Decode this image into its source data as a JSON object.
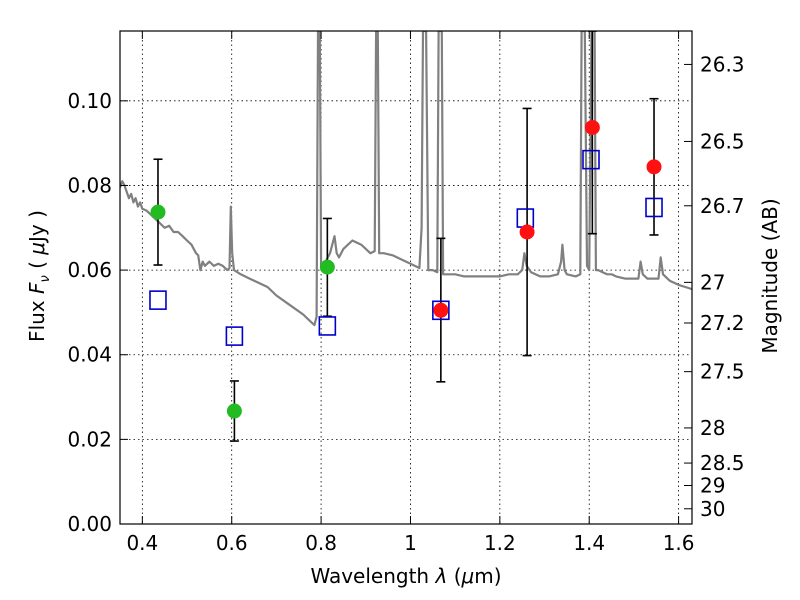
{
  "chart_data": {
    "type": "scatter",
    "xlabel": "Wavelength",
    "xlabel_symbol": "λ",
    "xlabel_unit_prefix": "(",
    "xlabel_unit_mu": "μ",
    "xlabel_unit_suffix": "m)",
    "ylabel": "Flux",
    "ylabel_symbol": "F",
    "ylabel_sub": "ν",
    "ylabel_unit_open": "(",
    "ylabel_unit_mu": "μ",
    "ylabel_unit_text": "Jy",
    "ylabel_unit_close": ")",
    "y2label": "Magnitude (AB)",
    "xlim": [
      0.35,
      1.63
    ],
    "ylim": [
      0.0,
      0.1165
    ],
    "grid": true,
    "grid_style": "dotted",
    "xticks": [
      {
        "value": 0.4,
        "label": "0.4"
      },
      {
        "value": 0.6,
        "label": "0.6"
      },
      {
        "value": 0.8,
        "label": "0.8"
      },
      {
        "value": 1.0,
        "label": "1"
      },
      {
        "value": 1.2,
        "label": "1.2"
      },
      {
        "value": 1.4,
        "label": "1.4"
      },
      {
        "value": 1.6,
        "label": "1.6"
      }
    ],
    "yticks": [
      {
        "value": 0.0,
        "label": "0.00"
      },
      {
        "value": 0.02,
        "label": "0.02"
      },
      {
        "value": 0.04,
        "label": "0.04"
      },
      {
        "value": 0.06,
        "label": "0.06"
      },
      {
        "value": 0.08,
        "label": "0.08"
      },
      {
        "value": 0.1,
        "label": "0.10"
      }
    ],
    "y2ticks": [
      {
        "label": "26.3",
        "flux": 0.1086
      },
      {
        "label": "26.5",
        "flux": 0.0904
      },
      {
        "label": "26.7",
        "flux": 0.0752
      },
      {
        "label": "27",
        "flux": 0.0571
      },
      {
        "label": "27.2",
        "flux": 0.0475
      },
      {
        "label": "27.5",
        "flux": 0.036
      },
      {
        "label": "28",
        "flux": 0.0227
      },
      {
        "label": "28.5",
        "flux": 0.0144
      },
      {
        "label": "29",
        "flux": 0.0091
      },
      {
        "label": "30",
        "flux": 0.0036
      }
    ],
    "colors": {
      "sed": "#808080",
      "green": "#22bb22",
      "red": "#ff1111",
      "model_box": "#0000cc",
      "errorbar": "#000000"
    },
    "series": [
      {
        "kind": "model_spectrum",
        "color": "#808080",
        "points": [
          [
            0.35,
            0.0795
          ],
          [
            0.355,
            0.081
          ],
          [
            0.36,
            0.08
          ],
          [
            0.365,
            0.0785
          ],
          [
            0.37,
            0.077
          ],
          [
            0.375,
            0.078
          ],
          [
            0.38,
            0.076
          ],
          [
            0.385,
            0.077
          ],
          [
            0.39,
            0.075
          ],
          [
            0.395,
            0.076
          ],
          [
            0.4,
            0.0745
          ],
          [
            0.41,
            0.074
          ],
          [
            0.42,
            0.073
          ],
          [
            0.43,
            0.072
          ],
          [
            0.44,
            0.071
          ],
          [
            0.45,
            0.07
          ],
          [
            0.46,
            0.0705
          ],
          [
            0.47,
            0.069
          ],
          [
            0.48,
            0.069
          ],
          [
            0.49,
            0.068
          ],
          [
            0.5,
            0.067
          ],
          [
            0.51,
            0.066
          ],
          [
            0.52,
            0.064
          ],
          [
            0.525,
            0.0635
          ],
          [
            0.53,
            0.06
          ],
          [
            0.535,
            0.062
          ],
          [
            0.54,
            0.061
          ],
          [
            0.55,
            0.062
          ],
          [
            0.56,
            0.061
          ],
          [
            0.57,
            0.0615
          ],
          [
            0.58,
            0.061
          ],
          [
            0.59,
            0.06
          ],
          [
            0.595,
            0.0605
          ],
          [
            0.598,
            0.075
          ],
          [
            0.601,
            0.064
          ],
          [
            0.605,
            0.06
          ],
          [
            0.62,
            0.059
          ],
          [
            0.64,
            0.058
          ],
          [
            0.66,
            0.057
          ],
          [
            0.68,
            0.056
          ],
          [
            0.7,
            0.054
          ],
          [
            0.72,
            0.0525
          ],
          [
            0.74,
            0.051
          ],
          [
            0.76,
            0.0495
          ],
          [
            0.775,
            0.048
          ],
          [
            0.785,
            0.047
          ],
          [
            0.79,
            0.049
          ],
          [
            0.793,
            0.1165
          ],
          [
            0.797,
            0.1165
          ],
          [
            0.8,
            0.061
          ],
          [
            0.81,
            0.062
          ],
          [
            0.82,
            0.064
          ],
          [
            0.83,
            0.068
          ],
          [
            0.835,
            0.064
          ],
          [
            0.84,
            0.063
          ],
          [
            0.85,
            0.065
          ],
          [
            0.86,
            0.066
          ],
          [
            0.87,
            0.067
          ],
          [
            0.88,
            0.0665
          ],
          [
            0.89,
            0.066
          ],
          [
            0.9,
            0.065
          ],
          [
            0.91,
            0.064
          ],
          [
            0.92,
            0.0645
          ],
          [
            0.923,
            0.1165
          ],
          [
            0.927,
            0.1165
          ],
          [
            0.93,
            0.064
          ],
          [
            0.94,
            0.064
          ],
          [
            0.96,
            0.0635
          ],
          [
            0.98,
            0.0625
          ],
          [
            1.0,
            0.0615
          ],
          [
            1.01,
            0.061
          ],
          [
            1.02,
            0.0605
          ],
          [
            1.025,
            0.07
          ],
          [
            1.028,
            0.1165
          ],
          [
            1.035,
            0.1165
          ],
          [
            1.04,
            0.06
          ],
          [
            1.05,
            0.06
          ],
          [
            1.06,
            0.0595
          ],
          [
            1.063,
            0.1165
          ],
          [
            1.07,
            0.1165
          ],
          [
            1.073,
            0.059
          ],
          [
            1.08,
            0.059
          ],
          [
            1.1,
            0.059
          ],
          [
            1.12,
            0.0585
          ],
          [
            1.14,
            0.0585
          ],
          [
            1.16,
            0.0585
          ],
          [
            1.18,
            0.0585
          ],
          [
            1.2,
            0.0585
          ],
          [
            1.22,
            0.059
          ],
          [
            1.24,
            0.059
          ],
          [
            1.25,
            0.06
          ],
          [
            1.255,
            0.064
          ],
          [
            1.26,
            0.061
          ],
          [
            1.27,
            0.0595
          ],
          [
            1.29,
            0.0585
          ],
          [
            1.31,
            0.0585
          ],
          [
            1.33,
            0.059
          ],
          [
            1.337,
            0.062
          ],
          [
            1.34,
            0.066
          ],
          [
            1.345,
            0.06
          ],
          [
            1.35,
            0.059
          ],
          [
            1.37,
            0.0585
          ],
          [
            1.38,
            0.059
          ],
          [
            1.383,
            0.1165
          ],
          [
            1.39,
            0.1165
          ],
          [
            1.395,
            0.061
          ],
          [
            1.4,
            0.06
          ],
          [
            1.405,
            0.1165
          ],
          [
            1.412,
            0.1165
          ],
          [
            1.415,
            0.06
          ],
          [
            1.42,
            0.06
          ],
          [
            1.43,
            0.0595
          ],
          [
            1.44,
            0.059
          ],
          [
            1.45,
            0.059
          ],
          [
            1.46,
            0.0585
          ],
          [
            1.48,
            0.058
          ],
          [
            1.5,
            0.058
          ],
          [
            1.51,
            0.058
          ],
          [
            1.515,
            0.062
          ],
          [
            1.52,
            0.059
          ],
          [
            1.53,
            0.058
          ],
          [
            1.555,
            0.058
          ],
          [
            1.56,
            0.063
          ],
          [
            1.565,
            0.059
          ],
          [
            1.58,
            0.0575
          ],
          [
            1.6,
            0.0565
          ],
          [
            1.615,
            0.056
          ],
          [
            1.63,
            0.0555
          ]
        ]
      },
      {
        "kind": "points_with_errorbars",
        "color": "#22bb22",
        "points": [
          {
            "x": 0.435,
            "y": 0.0737,
            "ylo": 0.0612,
            "yhi": 0.0862
          },
          {
            "x": 0.606,
            "y": 0.0267,
            "ylo": 0.0196,
            "yhi": 0.0338
          },
          {
            "x": 0.814,
            "y": 0.0607,
            "ylo": 0.0491,
            "yhi": 0.0722
          }
        ]
      },
      {
        "kind": "points_with_errorbars",
        "color": "#ff1111",
        "points": [
          {
            "x": 1.068,
            "y": 0.0505,
            "ylo": 0.0336,
            "yhi": 0.0675
          },
          {
            "x": 1.261,
            "y": 0.069,
            "ylo": 0.0398,
            "yhi": 0.0982
          },
          {
            "x": 1.407,
            "y": 0.0937,
            "ylo": 0.0686,
            "yhi": 0.1165
          },
          {
            "x": 1.545,
            "y": 0.0844,
            "ylo": 0.0683,
            "yhi": 0.1005
          }
        ]
      },
      {
        "kind": "model_boxes",
        "color": "#0000cc",
        "points": [
          {
            "x": 0.435,
            "y": 0.0529
          },
          {
            "x": 0.606,
            "y": 0.0444
          },
          {
            "x": 0.814,
            "y": 0.0468
          },
          {
            "x": 1.068,
            "y": 0.0505
          },
          {
            "x": 1.257,
            "y": 0.0723
          },
          {
            "x": 1.404,
            "y": 0.0861
          },
          {
            "x": 1.545,
            "y": 0.0748
          }
        ]
      }
    ]
  }
}
